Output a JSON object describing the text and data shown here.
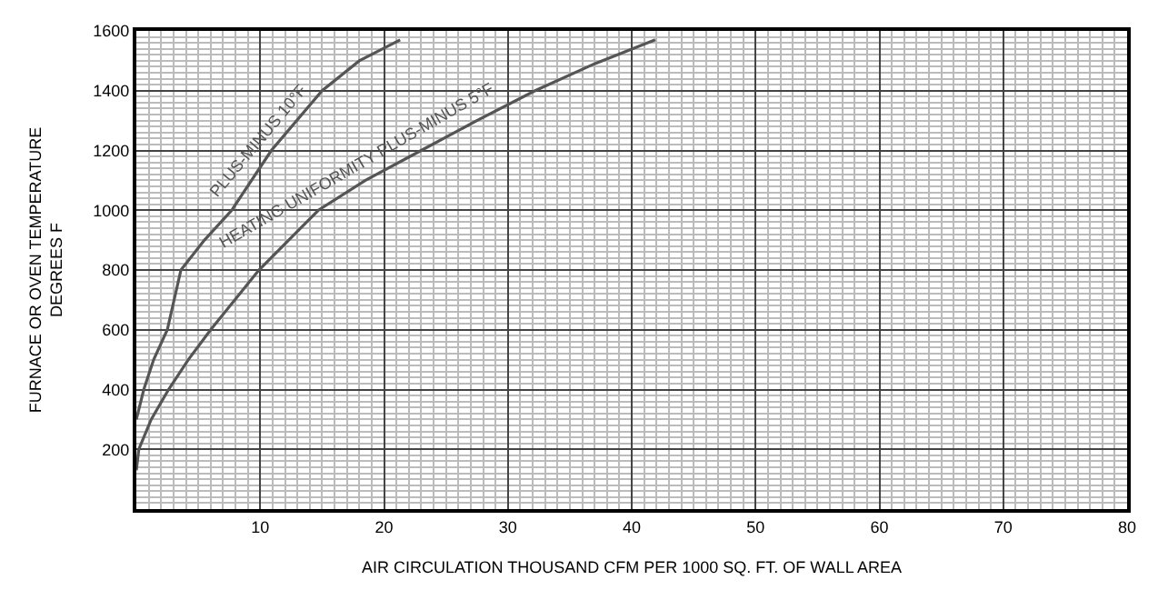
{
  "chart_data": {
    "type": "line",
    "xlabel": "AIR CIRCULATION THOUSAND CFM PER 1000 SQ. FT. OF WALL AREA",
    "ylabel": "FURNACE OR OVEN TEMPERATURE\nDEGREES F",
    "xlim": [
      0,
      80
    ],
    "ylim": [
      0,
      1600
    ],
    "xticks": [
      10,
      20,
      30,
      40,
      50,
      60,
      70,
      80
    ],
    "yticks": [
      200,
      400,
      600,
      800,
      1000,
      1200,
      1400,
      1600
    ],
    "grid": true,
    "legend": false,
    "marker": "none",
    "line_style": "solid",
    "series": [
      {
        "name": "PLUS-MINUS 10°F",
        "color": "#555555",
        "x": [
          0,
          0.6,
          1.4,
          2.5,
          3.6,
          5.5,
          7.7,
          10.9,
          15.0,
          18,
          21.3
        ],
        "values": [
          300,
          400,
          500,
          600,
          800,
          900,
          1000,
          1200,
          1400,
          1500,
          1570
        ]
      },
      {
        "name": "HEATING UNIFORMITY PLUS-MINUS 5°F",
        "color": "#555555",
        "x": [
          0,
          0.2,
          1.2,
          2.6,
          4.2,
          6.0,
          9.9,
          14.7,
          18.5,
          23,
          27.5,
          32.2,
          37,
          41.9
        ],
        "values": [
          130,
          200,
          300,
          400,
          500,
          600,
          800,
          1000,
          1100,
          1200,
          1300,
          1400,
          1490,
          1570
        ]
      }
    ]
  }
}
